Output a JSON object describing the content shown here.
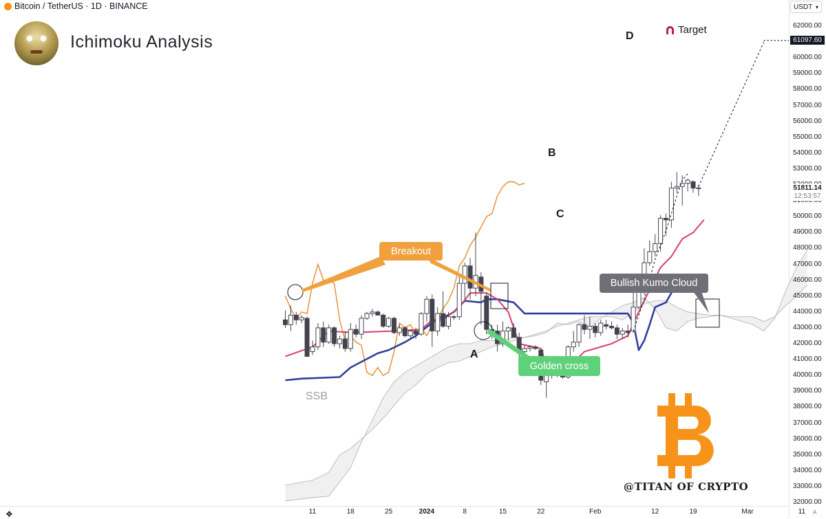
{
  "header": {
    "symbol_line": "Bitcoin / TetherUS · 1D · BINANCE"
  },
  "title": "Ichimoku Analysis",
  "currency_selector": {
    "value": "USDT",
    "icon": "chevron-down-icon"
  },
  "colors": {
    "candle_up": "#ffffff",
    "candle_down": "#43434e",
    "wick": "#43434e",
    "tenkan": "#d43f6b",
    "kijun": "#2f3e9e",
    "chikou": "#e8913a",
    "cloud": "#f0f0f1",
    "cloud_edge": "#b0b0b4",
    "callout_breakout": "#f0a03c",
    "callout_golden": "#5fd17a",
    "callout_kumo": "#6f7077",
    "bitcoin_logo": "#f7931a"
  },
  "chart_data": {
    "type": "candlestick",
    "y_axis": {
      "min": 32000,
      "max": 62000,
      "ticks": [
        "32000.00",
        "33000.00",
        "34000.00",
        "35000.00",
        "36000.00",
        "37000.00",
        "38000.00",
        "39000.00",
        "40000.00",
        "41000.00",
        "42000.00",
        "43000.00",
        "44000.00",
        "45000.00",
        "46000.00",
        "47000.00",
        "48000.00",
        "49000.00",
        "50000.00",
        "51000.00",
        "52000.00",
        "53000.00",
        "54000.00",
        "55000.00",
        "56000.00",
        "57000.00",
        "58000.00",
        "59000.00",
        "60000.00",
        "61000.00",
        "62000.00"
      ]
    },
    "x_axis": {
      "ticks": [
        {
          "label": "11",
          "day": -25
        },
        {
          "label": "18",
          "day": -18
        },
        {
          "label": "25",
          "day": -11
        },
        {
          "label": "2024",
          "day": -4,
          "bold": true
        },
        {
          "label": "8",
          "day": 3
        },
        {
          "label": "15",
          "day": 10
        },
        {
          "label": "22",
          "day": 17
        },
        {
          "label": "Feb",
          "day": 27
        },
        {
          "label": "12",
          "day": 38
        },
        {
          "label": "19",
          "day": 45
        },
        {
          "label": "Mar",
          "day": 55
        },
        {
          "label": "11",
          "day": 65
        }
      ]
    },
    "candles": [
      {
        "d": -30,
        "o": 43500,
        "h": 44100,
        "l": 43000,
        "c": 43200
      },
      {
        "d": -29,
        "o": 43200,
        "h": 44400,
        "l": 42800,
        "c": 43800
      },
      {
        "d": -28,
        "o": 43800,
        "h": 44000,
        "l": 43200,
        "c": 43500
      },
      {
        "d": -27,
        "o": 43500,
        "h": 43800,
        "l": 43300,
        "c": 43650
      },
      {
        "d": -26,
        "o": 43600,
        "h": 43700,
        "l": 41500,
        "c": 41200
      },
      {
        "d": -25,
        "o": 41500,
        "h": 42200,
        "l": 41300,
        "c": 41800
      },
      {
        "d": -24,
        "o": 41800,
        "h": 43300,
        "l": 41600,
        "c": 43000
      },
      {
        "d": -23,
        "o": 43000,
        "h": 43400,
        "l": 41800,
        "c": 42100
      },
      {
        "d": -22,
        "o": 42100,
        "h": 43200,
        "l": 42000,
        "c": 43000
      },
      {
        "d": -21,
        "o": 43000,
        "h": 43100,
        "l": 41800,
        "c": 42000
      },
      {
        "d": -20,
        "o": 42000,
        "h": 42500,
        "l": 41700,
        "c": 42300
      },
      {
        "d": -19,
        "o": 42300,
        "h": 42800,
        "l": 41500,
        "c": 41700
      },
      {
        "d": -18,
        "o": 41700,
        "h": 43300,
        "l": 41500,
        "c": 42900
      },
      {
        "d": -17,
        "o": 42900,
        "h": 43200,
        "l": 42400,
        "c": 42600
      },
      {
        "d": -16,
        "o": 42600,
        "h": 43800,
        "l": 42300,
        "c": 43600
      },
      {
        "d": -15,
        "o": 43600,
        "h": 44000,
        "l": 43500,
        "c": 43900
      },
      {
        "d": -14,
        "o": 43900,
        "h": 44200,
        "l": 43700,
        "c": 44000
      },
      {
        "d": -13,
        "o": 44000,
        "h": 44100,
        "l": 43800,
        "c": 43800
      },
      {
        "d": -12,
        "o": 43800,
        "h": 43900,
        "l": 43000,
        "c": 43100
      },
      {
        "d": -11,
        "o": 43100,
        "h": 43700,
        "l": 43000,
        "c": 43600
      },
      {
        "d": -10,
        "o": 43600,
        "h": 43700,
        "l": 42600,
        "c": 42700
      },
      {
        "d": -9,
        "o": 42700,
        "h": 43200,
        "l": 42500,
        "c": 43000
      },
      {
        "d": -8,
        "o": 43000,
        "h": 43100,
        "l": 42400,
        "c": 42500
      },
      {
        "d": -7,
        "o": 42500,
        "h": 42900,
        "l": 42300,
        "c": 42800
      },
      {
        "d": -6,
        "o": 42800,
        "h": 43000,
        "l": 42300,
        "c": 42600
      },
      {
        "d": -5,
        "o": 42600,
        "h": 44000,
        "l": 42500,
        "c": 43900
      },
      {
        "d": -4,
        "o": 43900,
        "h": 45000,
        "l": 43400,
        "c": 44800
      },
      {
        "d": -3,
        "o": 44800,
        "h": 45100,
        "l": 41800,
        "c": 42800
      },
      {
        "d": -2,
        "o": 42800,
        "h": 44300,
        "l": 42500,
        "c": 43900
      },
      {
        "d": -1,
        "o": 43900,
        "h": 45300,
        "l": 43000,
        "c": 43100
      },
      {
        "d": 0,
        "o": 43100,
        "h": 44000,
        "l": 42900,
        "c": 43700
      },
      {
        "d": 1,
        "o": 43700,
        "h": 43800,
        "l": 43500,
        "c": 43700
      },
      {
        "d": 2,
        "o": 43700,
        "h": 46300,
        "l": 43500,
        "c": 45800
      },
      {
        "d": 3,
        "o": 45800,
        "h": 47100,
        "l": 44800,
        "c": 46900
      },
      {
        "d": 4,
        "o": 46900,
        "h": 47400,
        "l": 44800,
        "c": 45500
      },
      {
        "d": 5,
        "o": 45500,
        "h": 49000,
        "l": 45000,
        "c": 46300
      },
      {
        "d": 6,
        "o": 46200,
        "h": 46500,
        "l": 43200,
        "c": 45300
      },
      {
        "d": 7,
        "o": 45000,
        "h": 45200,
        "l": 42600,
        "c": 42900
      },
      {
        "d": 8,
        "o": 42900,
        "h": 43200,
        "l": 42300,
        "c": 42800
      },
      {
        "d": 9,
        "o": 42800,
        "h": 43200,
        "l": 41500,
        "c": 42000
      },
      {
        "d": 10,
        "o": 42000,
        "h": 43400,
        "l": 41800,
        "c": 42800
      },
      {
        "d": 11,
        "o": 42800,
        "h": 43100,
        "l": 42200,
        "c": 43000
      },
      {
        "d": 12,
        "o": 43000,
        "h": 43300,
        "l": 42400,
        "c": 42400
      },
      {
        "d": 13,
        "o": 42400,
        "h": 42700,
        "l": 41000,
        "c": 41500
      },
      {
        "d": 14,
        "o": 41500,
        "h": 41900,
        "l": 40800,
        "c": 41700
      },
      {
        "d": 15,
        "o": 41700,
        "h": 41900,
        "l": 41500,
        "c": 41800
      },
      {
        "d": 16,
        "o": 41800,
        "h": 41900,
        "l": 41600,
        "c": 41700
      },
      {
        "d": 17,
        "o": 41600,
        "h": 41700,
        "l": 39400,
        "c": 39700
      },
      {
        "d": 18,
        "o": 39600,
        "h": 40300,
        "l": 38600,
        "c": 40000
      },
      {
        "d": 19,
        "o": 40000,
        "h": 40300,
        "l": 39800,
        "c": 40200
      },
      {
        "d": 20,
        "o": 40000,
        "h": 40500,
        "l": 39900,
        "c": 40100
      },
      {
        "d": 21,
        "o": 40100,
        "h": 40400,
        "l": 39800,
        "c": 39900
      },
      {
        "d": 22,
        "o": 39900,
        "h": 41900,
        "l": 39800,
        "c": 41800
      },
      {
        "d": 23,
        "o": 41800,
        "h": 42800,
        "l": 41500,
        "c": 42100
      },
      {
        "d": 24,
        "o": 42100,
        "h": 43300,
        "l": 41800,
        "c": 43200
      },
      {
        "d": 25,
        "o": 43200,
        "h": 43800,
        "l": 42600,
        "c": 42900
      },
      {
        "d": 26,
        "o": 42900,
        "h": 43700,
        "l": 42300,
        "c": 43100
      },
      {
        "d": 27,
        "o": 43100,
        "h": 43300,
        "l": 42400,
        "c": 42700
      },
      {
        "d": 28,
        "o": 42700,
        "h": 43500,
        "l": 42500,
        "c": 43300
      },
      {
        "d": 29,
        "o": 43200,
        "h": 43500,
        "l": 42900,
        "c": 43100
      },
      {
        "d": 30,
        "o": 43100,
        "h": 43400,
        "l": 42900,
        "c": 43000
      },
      {
        "d": 31,
        "o": 43000,
        "h": 43200,
        "l": 42300,
        "c": 42600
      },
      {
        "d": 32,
        "o": 42600,
        "h": 43000,
        "l": 42300,
        "c": 42800
      },
      {
        "d": 33,
        "o": 42800,
        "h": 43200,
        "l": 42400,
        "c": 42700
      },
      {
        "d": 34,
        "o": 42800,
        "h": 45500,
        "l": 42700,
        "c": 44300
      },
      {
        "d": 35,
        "o": 44300,
        "h": 45600,
        "l": 44200,
        "c": 45300
      },
      {
        "d": 36,
        "o": 45300,
        "h": 48000,
        "l": 45100,
        "c": 47100
      },
      {
        "d": 37,
        "o": 47100,
        "h": 48500,
        "l": 46900,
        "c": 47800
      },
      {
        "d": 38,
        "o": 47800,
        "h": 48900,
        "l": 47500,
        "c": 48300
      },
      {
        "d": 39,
        "o": 48300,
        "h": 50100,
        "l": 47800,
        "c": 49900
      },
      {
        "d": 40,
        "o": 49900,
        "h": 50200,
        "l": 48800,
        "c": 49800
      },
      {
        "d": 41,
        "o": 49800,
        "h": 52200,
        "l": 49300,
        "c": 51800
      },
      {
        "d": 42,
        "o": 51800,
        "h": 52800,
        "l": 51500,
        "c": 51900
      },
      {
        "d": 43,
        "o": 51900,
        "h": 52600,
        "l": 50700,
        "c": 52100
      },
      {
        "d": 44,
        "o": 52100,
        "h": 52400,
        "l": 51600,
        "c": 52300
      },
      {
        "d": 45,
        "o": 52200,
        "h": 52300,
        "l": 51500,
        "c": 51800
      },
      {
        "d": 46,
        "o": 51800,
        "h": 52000,
        "l": 51300,
        "c": 51811
      }
    ],
    "tenkan": [
      [
        -30,
        41200
      ],
      [
        -25,
        41800
      ],
      [
        -22,
        42800
      ],
      [
        -18,
        42700
      ],
      [
        -10,
        42800
      ],
      [
        -5,
        42900
      ],
      [
        -3,
        43500
      ],
      [
        -1,
        43500
      ],
      [
        2,
        44300
      ],
      [
        4,
        45200
      ],
      [
        7,
        45200
      ],
      [
        9,
        44800
      ],
      [
        11,
        44000
      ],
      [
        13,
        42000
      ],
      [
        17,
        41700
      ],
      [
        18,
        40700
      ],
      [
        22,
        40500
      ],
      [
        25,
        41500
      ],
      [
        30,
        42000
      ],
      [
        33,
        42500
      ],
      [
        35,
        44000
      ],
      [
        37,
        45400
      ],
      [
        39,
        46800
      ],
      [
        41,
        47500
      ],
      [
        43,
        48600
      ],
      [
        45,
        49000
      ],
      [
        47,
        49800
      ]
    ],
    "kijun": [
      [
        -30,
        39700
      ],
      [
        -27,
        39800
      ],
      [
        -20,
        39900
      ],
      [
        -18,
        40500
      ],
      [
        -13,
        41400
      ],
      [
        -11,
        41600
      ],
      [
        -8,
        42100
      ],
      [
        -6,
        42500
      ],
      [
        -2,
        43600
      ],
      [
        0,
        43800
      ],
      [
        1,
        44000
      ],
      [
        3,
        44700
      ],
      [
        6,
        44600
      ],
      [
        7,
        44800
      ],
      [
        9,
        44800
      ],
      [
        12,
        44600
      ],
      [
        14,
        43900
      ],
      [
        28,
        43900
      ],
      [
        30,
        43900
      ],
      [
        33,
        43900
      ],
      [
        34,
        43300
      ],
      [
        35,
        41600
      ],
      [
        36,
        42200
      ],
      [
        37,
        43200
      ],
      [
        38,
        44300
      ],
      [
        40,
        44600
      ],
      [
        42,
        45800
      ],
      [
        44,
        45800
      ],
      [
        46,
        46200
      ]
    ],
    "chikou": [
      [
        -30,
        45000
      ],
      [
        -29,
        44200
      ],
      [
        -28,
        43600
      ],
      [
        -27,
        44000
      ],
      [
        -26,
        43900
      ],
      [
        -25,
        45800
      ],
      [
        -24,
        47000
      ],
      [
        -23,
        46000
      ],
      [
        -22,
        46000
      ],
      [
        -21,
        45800
      ],
      [
        -20,
        43500
      ],
      [
        -19,
        42200
      ],
      [
        -18,
        42500
      ],
      [
        -17,
        42100
      ],
      [
        -16,
        41900
      ],
      [
        -15,
        40200
      ],
      [
        -14,
        40000
      ],
      [
        -13,
        40500
      ],
      [
        -12,
        40000
      ],
      [
        -11,
        40200
      ],
      [
        -10,
        41500
      ],
      [
        -9,
        43300
      ],
      [
        -8,
        43000
      ],
      [
        -7,
        43200
      ],
      [
        -6,
        42600
      ],
      [
        -5,
        43000
      ],
      [
        -4,
        42500
      ],
      [
        -3,
        43200
      ],
      [
        -2,
        43600
      ],
      [
        -1,
        44200
      ],
      [
        0,
        44700
      ],
      [
        1,
        45500
      ],
      [
        2,
        46900
      ],
      [
        3,
        47400
      ],
      [
        4,
        48200
      ],
      [
        5,
        48700
      ],
      [
        7,
        50000
      ],
      [
        8,
        50200
      ],
      [
        9,
        51300
      ],
      [
        10,
        51900
      ],
      [
        11,
        52200
      ],
      [
        12,
        52200
      ],
      [
        13,
        52000
      ],
      [
        14,
        52100
      ]
    ],
    "ssa": [
      [
        -30,
        33100
      ],
      [
        -25,
        33400
      ],
      [
        -22,
        33900
      ],
      [
        -20,
        35000
      ],
      [
        -18,
        35400
      ],
      [
        -16,
        36000
      ],
      [
        -14,
        36600
      ],
      [
        -12,
        37300
      ],
      [
        -10,
        38100
      ],
      [
        -8,
        38900
      ],
      [
        -6,
        39400
      ],
      [
        -4,
        40100
      ],
      [
        -2,
        40500
      ],
      [
        0,
        40800
      ],
      [
        2,
        40900
      ],
      [
        4,
        41200
      ],
      [
        6,
        41500
      ],
      [
        8,
        41800
      ],
      [
        10,
        42000
      ],
      [
        12,
        42200
      ],
      [
        14,
        42400
      ],
      [
        16,
        42600
      ],
      [
        18,
        42800
      ],
      [
        20,
        43100
      ],
      [
        22,
        43300
      ],
      [
        24,
        43500
      ],
      [
        26,
        43700
      ],
      [
        28,
        43700
      ],
      [
        30,
        43700
      ],
      [
        32,
        43500
      ],
      [
        34,
        44000
      ],
      [
        36,
        44500
      ],
      [
        38,
        44700
      ],
      [
        40,
        44700
      ],
      [
        42,
        44300
      ],
      [
        44,
        44000
      ],
      [
        46,
        43900
      ],
      [
        48,
        43800
      ],
      [
        50,
        43800
      ],
      [
        52,
        43700
      ],
      [
        54,
        43700
      ],
      [
        56,
        43700
      ],
      [
        58,
        43400
      ],
      [
        60,
        43700
      ],
      [
        62,
        44400
      ],
      [
        64,
        45000
      ],
      [
        66,
        45700
      ]
    ],
    "ssb": [
      [
        -30,
        32100
      ],
      [
        -25,
        32300
      ],
      [
        -22,
        32400
      ],
      [
        -20,
        33300
      ],
      [
        -18,
        34200
      ],
      [
        -16,
        35800
      ],
      [
        -14,
        37200
      ],
      [
        -12,
        38600
      ],
      [
        -10,
        39600
      ],
      [
        -8,
        40200
      ],
      [
        -6,
        40600
      ],
      [
        -4,
        41000
      ],
      [
        -2,
        41400
      ],
      [
        0,
        41800
      ],
      [
        2,
        42000
      ],
      [
        4,
        42000
      ],
      [
        6,
        42200
      ],
      [
        8,
        42200
      ],
      [
        10,
        42200
      ],
      [
        12,
        42400
      ],
      [
        14,
        42400
      ],
      [
        16,
        42500
      ],
      [
        18,
        42700
      ],
      [
        20,
        43300
      ],
      [
        22,
        43200
      ],
      [
        24,
        43400
      ],
      [
        26,
        43000
      ],
      [
        28,
        43600
      ],
      [
        30,
        44000
      ],
      [
        32,
        44400
      ],
      [
        34,
        44600
      ],
      [
        36,
        44900
      ],
      [
        38,
        44200
      ],
      [
        40,
        43000
      ],
      [
        42,
        42800
      ],
      [
        44,
        43400
      ],
      [
        46,
        43600
      ],
      [
        48,
        43700
      ],
      [
        50,
        43800
      ],
      [
        52,
        43600
      ],
      [
        54,
        43400
      ],
      [
        56,
        43200
      ],
      [
        58,
        42800
      ],
      [
        60,
        43600
      ],
      [
        62,
        45300
      ],
      [
        64,
        46800
      ],
      [
        66,
        47900
      ]
    ],
    "annotations": {
      "A": "A",
      "B": "B",
      "C": "C",
      "D": "D",
      "target": "Target",
      "breakout": "Breakout",
      "golden_cross": "Golden cross",
      "kumo": "Bullish Kumo Cloud",
      "ssb": "SSB"
    },
    "target_price": "61097.60",
    "last_price": "51811.14",
    "countdown": "12:53:57"
  },
  "watermark": "@TITAN OF CRYPTO",
  "bitcoin_logo": "bitcoin-logo-icon",
  "axis_mode": "A"
}
